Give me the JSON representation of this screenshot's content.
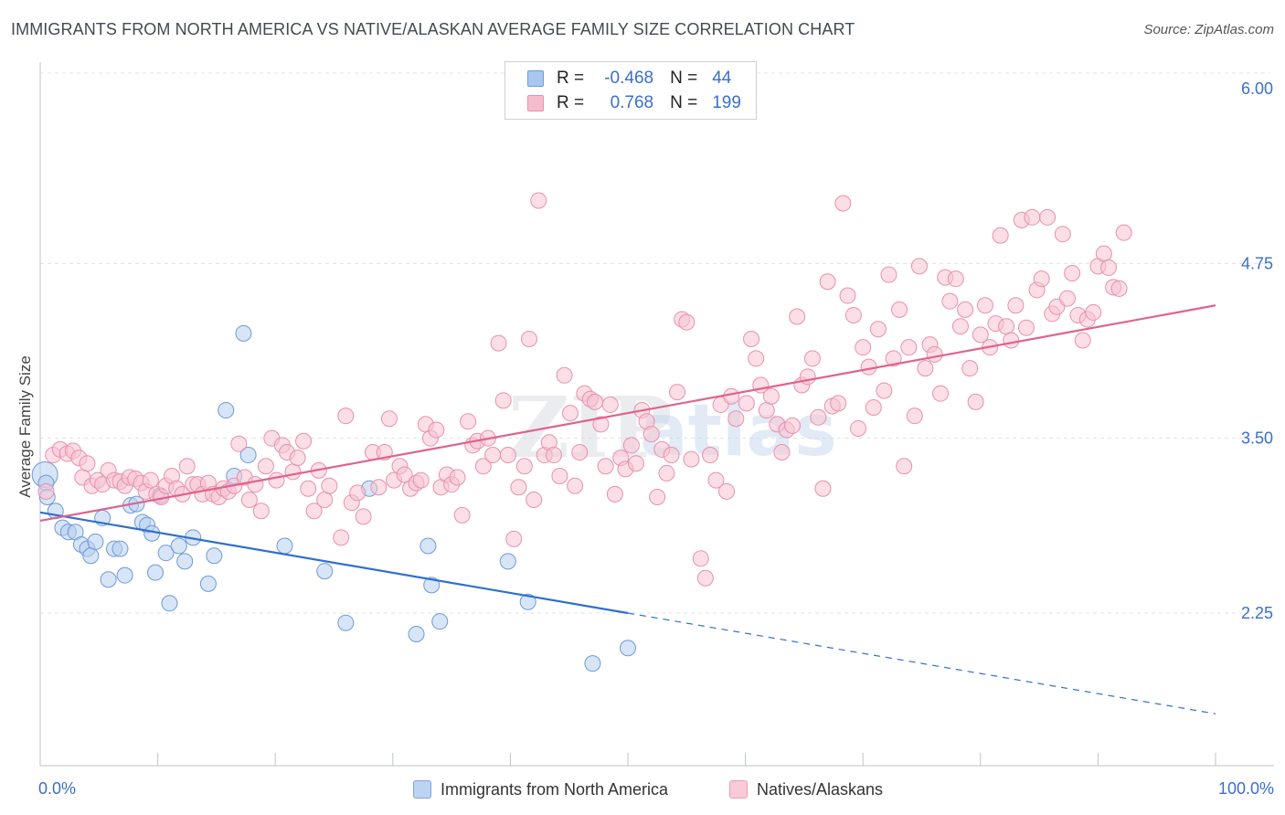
{
  "header": {
    "title": "IMMIGRANTS FROM NORTH AMERICA VS NATIVE/ALASKAN AVERAGE FAMILY SIZE CORRELATION CHART",
    "source": "Source: ZipAtlas.com"
  },
  "legend": {
    "r_label": "R =",
    "n_label": "N =",
    "rows": [
      {
        "r": "-0.468",
        "n": "44",
        "fill": "#a9c6ef",
        "stroke": "#6f9ad8"
      },
      {
        "r": "0.768",
        "n": "199",
        "fill": "#f6bccd",
        "stroke": "#e891ad"
      }
    ]
  },
  "bottom_legend": [
    {
      "label": "Immigrants from North America",
      "fill": "#bcd3f2",
      "stroke": "#7fa5dc"
    },
    {
      "label": "Natives/Alaskans",
      "fill": "#f9cad8",
      "stroke": "#eb9db8"
    }
  ],
  "watermark": {
    "zip": "ZIP",
    "atlas": "atlas"
  },
  "chart_data": {
    "type": "scatter",
    "title": "IMMIGRANTS FROM NORTH AMERICA VS NATIVE/ALASKAN AVERAGE FAMILY SIZE CORRELATION CHART",
    "xlabel": "",
    "ylabel": "Average Family Size",
    "xlim": [
      0,
      100
    ],
    "ylim": [
      1.3,
      6.15
    ],
    "x_tick_labels": [
      "0.0%",
      "100.0%"
    ],
    "y_ticks": [
      {
        "value": 2.25,
        "label": "2.25"
      },
      {
        "value": 3.5,
        "label": "3.50"
      },
      {
        "value": 4.75,
        "label": "4.75"
      },
      {
        "value": 6.0,
        "label": "6.00"
      }
    ],
    "grid": true,
    "legend_position": "top-center",
    "series": [
      {
        "name": "Immigrants from North America",
        "color": "#6f9ad8",
        "fill": "#b7cff1",
        "line_color": "#2f6fcf",
        "trend": {
          "x0": 0,
          "y0": 2.97,
          "x1": 50,
          "y1": 2.25,
          "dash_to_x": 100,
          "dash_to_y": 1.53
        },
        "points": [
          [
            0.4,
            3.24
          ],
          [
            0.5,
            3.18
          ],
          [
            0.6,
            3.08
          ],
          [
            1.3,
            2.98
          ],
          [
            1.9,
            2.86
          ],
          [
            2.4,
            2.83
          ],
          [
            3.0,
            2.83
          ],
          [
            3.5,
            2.74
          ],
          [
            4.0,
            2.71
          ],
          [
            4.3,
            2.66
          ],
          [
            4.7,
            2.76
          ],
          [
            5.3,
            2.93
          ],
          [
            5.8,
            2.49
          ],
          [
            6.3,
            2.71
          ],
          [
            6.8,
            2.71
          ],
          [
            7.2,
            2.52
          ],
          [
            7.7,
            3.02
          ],
          [
            8.2,
            3.03
          ],
          [
            8.7,
            2.9
          ],
          [
            9.1,
            2.88
          ],
          [
            9.5,
            2.82
          ],
          [
            9.8,
            2.54
          ],
          [
            10.2,
            3.09
          ],
          [
            10.7,
            2.68
          ],
          [
            11.0,
            2.32
          ],
          [
            11.8,
            2.73
          ],
          [
            12.3,
            2.62
          ],
          [
            13.0,
            2.79
          ],
          [
            14.3,
            2.46
          ],
          [
            14.8,
            2.66
          ],
          [
            15.8,
            3.7
          ],
          [
            16.5,
            3.23
          ],
          [
            17.3,
            4.25
          ],
          [
            17.7,
            3.38
          ],
          [
            20.8,
            2.73
          ],
          [
            24.2,
            2.55
          ],
          [
            26.0,
            2.18
          ],
          [
            28.0,
            3.14
          ],
          [
            32.0,
            2.1
          ],
          [
            33.0,
            2.73
          ],
          [
            33.3,
            2.45
          ],
          [
            34.0,
            2.19
          ],
          [
            39.8,
            2.62
          ],
          [
            41.5,
            2.33
          ],
          [
            47.0,
            1.89
          ],
          [
            50.0,
            2.0
          ]
        ]
      },
      {
        "name": "Natives/Alaskans",
        "color": "#e891ad",
        "fill": "#f7c3d2",
        "line_color": "#e0628c",
        "trend": {
          "x0": 0,
          "y0": 2.91,
          "x1": 100,
          "y1": 4.45
        },
        "points": [
          [
            0.5,
            3.12
          ],
          [
            1.1,
            3.38
          ],
          [
            1.7,
            3.42
          ],
          [
            2.3,
            3.39
          ],
          [
            2.8,
            3.41
          ],
          [
            3.3,
            3.36
          ],
          [
            3.6,
            3.22
          ],
          [
            4.0,
            3.32
          ],
          [
            4.4,
            3.16
          ],
          [
            4.9,
            3.2
          ],
          [
            5.3,
            3.17
          ],
          [
            5.8,
            3.27
          ],
          [
            6.3,
            3.2
          ],
          [
            6.8,
            3.19
          ],
          [
            7.2,
            3.16
          ],
          [
            7.6,
            3.22
          ],
          [
            8.1,
            3.21
          ],
          [
            8.6,
            3.18
          ],
          [
            9.0,
            3.12
          ],
          [
            9.4,
            3.2
          ],
          [
            9.9,
            3.1
          ],
          [
            10.3,
            3.08
          ],
          [
            10.7,
            3.16
          ],
          [
            11.2,
            3.23
          ],
          [
            11.6,
            3.14
          ],
          [
            12.1,
            3.1
          ],
          [
            12.5,
            3.3
          ],
          [
            13.0,
            3.17
          ],
          [
            13.4,
            3.17
          ],
          [
            13.8,
            3.1
          ],
          [
            14.3,
            3.18
          ],
          [
            14.7,
            3.1
          ],
          [
            15.2,
            3.08
          ],
          [
            15.6,
            3.14
          ],
          [
            16.0,
            3.12
          ],
          [
            16.5,
            3.16
          ],
          [
            16.9,
            3.46
          ],
          [
            17.4,
            3.22
          ],
          [
            17.8,
            3.06
          ],
          [
            18.3,
            3.17
          ],
          [
            18.8,
            2.98
          ],
          [
            19.2,
            3.3
          ],
          [
            19.7,
            3.5
          ],
          [
            20.1,
            3.2
          ],
          [
            20.6,
            3.45
          ],
          [
            21.0,
            3.4
          ],
          [
            21.5,
            3.26
          ],
          [
            21.9,
            3.36
          ],
          [
            22.4,
            3.48
          ],
          [
            22.8,
            3.14
          ],
          [
            23.3,
            2.98
          ],
          [
            23.7,
            3.27
          ],
          [
            24.2,
            3.06
          ],
          [
            24.6,
            3.16
          ],
          [
            25.6,
            2.79
          ],
          [
            26.0,
            3.66
          ],
          [
            26.5,
            3.04
          ],
          [
            27.0,
            3.11
          ],
          [
            27.5,
            2.94
          ],
          [
            28.3,
            3.4
          ],
          [
            28.8,
            3.15
          ],
          [
            29.3,
            3.4
          ],
          [
            29.7,
            3.64
          ],
          [
            30.1,
            3.2
          ],
          [
            30.6,
            3.3
          ],
          [
            31.0,
            3.24
          ],
          [
            31.5,
            3.14
          ],
          [
            32.0,
            3.18
          ],
          [
            32.4,
            3.2
          ],
          [
            32.8,
            3.6
          ],
          [
            33.2,
            3.5
          ],
          [
            33.7,
            3.56
          ],
          [
            34.1,
            3.15
          ],
          [
            34.6,
            3.24
          ],
          [
            35.0,
            3.17
          ],
          [
            35.5,
            3.22
          ],
          [
            35.9,
            2.95
          ],
          [
            36.4,
            3.62
          ],
          [
            36.8,
            3.45
          ],
          [
            37.2,
            3.48
          ],
          [
            37.7,
            3.3
          ],
          [
            38.1,
            3.5
          ],
          [
            38.5,
            3.38
          ],
          [
            39.0,
            4.18
          ],
          [
            39.4,
            3.77
          ],
          [
            39.8,
            3.38
          ],
          [
            40.3,
            2.78
          ],
          [
            40.7,
            3.15
          ],
          [
            41.2,
            3.3
          ],
          [
            41.6,
            4.21
          ],
          [
            42.0,
            3.06
          ],
          [
            42.4,
            5.2
          ],
          [
            42.9,
            3.38
          ],
          [
            43.3,
            3.47
          ],
          [
            43.7,
            3.38
          ],
          [
            44.2,
            3.23
          ],
          [
            44.6,
            3.95
          ],
          [
            45.1,
            3.68
          ],
          [
            45.5,
            3.16
          ],
          [
            45.9,
            3.4
          ],
          [
            46.3,
            3.82
          ],
          [
            46.8,
            3.78
          ],
          [
            47.2,
            3.76
          ],
          [
            47.7,
            3.6
          ],
          [
            48.1,
            3.3
          ],
          [
            48.5,
            3.74
          ],
          [
            48.9,
            3.1
          ],
          [
            49.4,
            3.36
          ],
          [
            49.8,
            3.28
          ],
          [
            50.3,
            3.45
          ],
          [
            50.7,
            3.32
          ],
          [
            51.2,
            3.7
          ],
          [
            51.6,
            3.62
          ],
          [
            52.0,
            3.53
          ],
          [
            52.5,
            3.08
          ],
          [
            52.9,
            3.42
          ],
          [
            53.3,
            3.25
          ],
          [
            53.7,
            3.38
          ],
          [
            54.2,
            3.83
          ],
          [
            54.6,
            4.35
          ],
          [
            55.0,
            4.33
          ],
          [
            55.4,
            3.35
          ],
          [
            56.2,
            2.64
          ],
          [
            56.6,
            2.5
          ],
          [
            57.0,
            3.38
          ],
          [
            57.5,
            3.2
          ],
          [
            57.9,
            3.74
          ],
          [
            58.4,
            3.12
          ],
          [
            58.8,
            3.8
          ],
          [
            59.2,
            3.64
          ],
          [
            60.1,
            3.75
          ],
          [
            60.5,
            4.21
          ],
          [
            60.9,
            4.07
          ],
          [
            61.3,
            3.88
          ],
          [
            61.8,
            3.7
          ],
          [
            62.2,
            3.8
          ],
          [
            62.7,
            3.6
          ],
          [
            63.1,
            3.4
          ],
          [
            63.5,
            3.56
          ],
          [
            64.0,
            3.59
          ],
          [
            64.4,
            4.37
          ],
          [
            64.8,
            3.88
          ],
          [
            65.3,
            3.94
          ],
          [
            65.7,
            4.07
          ],
          [
            66.2,
            3.65
          ],
          [
            66.6,
            3.14
          ],
          [
            67.0,
            4.62
          ],
          [
            67.4,
            3.73
          ],
          [
            67.9,
            3.75
          ],
          [
            68.3,
            5.18
          ],
          [
            68.7,
            4.52
          ],
          [
            69.2,
            4.38
          ],
          [
            69.6,
            3.57
          ],
          [
            70.0,
            4.15
          ],
          [
            70.5,
            4.01
          ],
          [
            70.9,
            3.72
          ],
          [
            71.3,
            4.28
          ],
          [
            71.8,
            3.84
          ],
          [
            72.2,
            4.67
          ],
          [
            72.6,
            4.07
          ],
          [
            73.1,
            4.42
          ],
          [
            73.5,
            3.3
          ],
          [
            73.9,
            4.15
          ],
          [
            74.4,
            3.66
          ],
          [
            74.8,
            4.73
          ],
          [
            75.3,
            4.0
          ],
          [
            75.7,
            4.17
          ],
          [
            76.1,
            4.1
          ],
          [
            76.6,
            3.82
          ],
          [
            77.0,
            4.65
          ],
          [
            77.4,
            4.48
          ],
          [
            77.9,
            4.64
          ],
          [
            78.3,
            4.3
          ],
          [
            78.7,
            4.42
          ],
          [
            79.1,
            4.0
          ],
          [
            79.6,
            3.76
          ],
          [
            80.0,
            4.24
          ],
          [
            80.4,
            4.45
          ],
          [
            80.8,
            4.15
          ],
          [
            81.3,
            4.32
          ],
          [
            81.7,
            4.95
          ],
          [
            82.2,
            4.3
          ],
          [
            82.6,
            4.2
          ],
          [
            83.0,
            4.45
          ],
          [
            83.5,
            5.06
          ],
          [
            83.9,
            4.29
          ],
          [
            84.4,
            5.08
          ],
          [
            84.8,
            4.56
          ],
          [
            85.2,
            4.64
          ],
          [
            85.7,
            5.08
          ],
          [
            86.1,
            4.39
          ],
          [
            86.5,
            4.44
          ],
          [
            87.0,
            4.96
          ],
          [
            87.4,
            4.5
          ],
          [
            87.8,
            4.68
          ],
          [
            88.3,
            4.38
          ],
          [
            88.7,
            4.2
          ],
          [
            89.1,
            4.35
          ],
          [
            89.6,
            4.4
          ],
          [
            90.0,
            4.73
          ],
          [
            90.5,
            4.82
          ],
          [
            90.9,
            4.72
          ],
          [
            91.3,
            4.58
          ],
          [
            91.8,
            4.57
          ],
          [
            92.2,
            4.97
          ]
        ]
      }
    ]
  }
}
